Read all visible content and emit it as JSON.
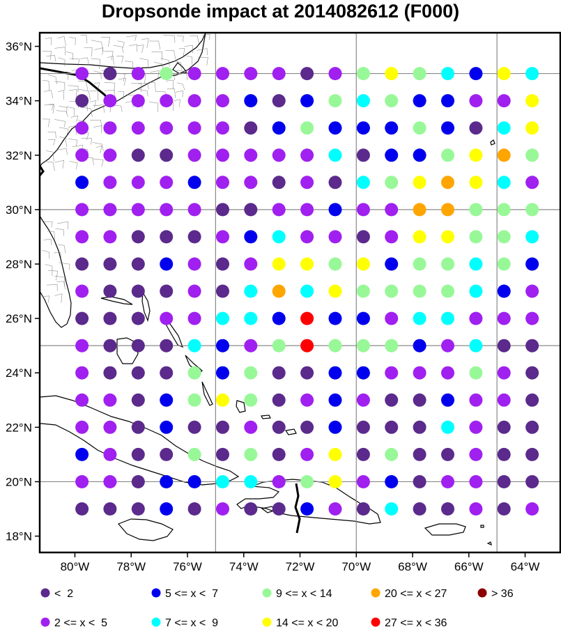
{
  "title": "Dropsonde impact at 2014082612 (F000)",
  "lon_range": [
    -81.25,
    -62.75
  ],
  "lat_range": [
    17.4,
    36.5
  ],
  "grid_lons": [
    -75,
    -70,
    -65
  ],
  "grid_lats": [
    20,
    25,
    30,
    35
  ],
  "lon_ticks": [
    {
      "lon": -80,
      "label": "80°W"
    },
    {
      "lon": -78,
      "label": "78°W"
    },
    {
      "lon": -76,
      "label": "76°W"
    },
    {
      "lon": -74,
      "label": "74°W"
    },
    {
      "lon": -72,
      "label": "72°W"
    },
    {
      "lon": -70,
      "label": "70°W"
    },
    {
      "lon": -68,
      "label": "68°W"
    },
    {
      "lon": -66,
      "label": "66°W"
    },
    {
      "lon": -64,
      "label": "64°W"
    }
  ],
  "lat_ticks": [
    {
      "lat": 18,
      "label": "18°N"
    },
    {
      "lat": 20,
      "label": "20°N"
    },
    {
      "lat": 22,
      "label": "22°N"
    },
    {
      "lat": 24,
      "label": "24°N"
    },
    {
      "lat": 26,
      "label": "26°N"
    },
    {
      "lat": 28,
      "label": "28°N"
    },
    {
      "lat": 30,
      "label": "30°N"
    },
    {
      "lat": 32,
      "label": "32°N"
    },
    {
      "lat": 34,
      "label": "34°N"
    },
    {
      "lat": 36,
      "label": "36°N"
    }
  ],
  "categories": [
    {
      "label": "<  2",
      "color": "#5b2a8c"
    },
    {
      "label": "2 <= x <  5",
      "color": "#a020f0"
    },
    {
      "label": "5 <= x <  7",
      "color": "#0000ee"
    },
    {
      "label": "7 <= x <  9",
      "color": "#00ffff"
    },
    {
      "label": "9 <= x < 14",
      "color": "#98f898"
    },
    {
      "label": "14 <= x < 20",
      "color": "#ffff00"
    },
    {
      "label": "20 <= x < 27",
      "color": "#ffa500"
    },
    {
      "label": "27 <= x < 36",
      "color": "#ff0000"
    },
    {
      "label": "> 36",
      "color": "#8b0000"
    }
  ],
  "points": {
    "lons": [
      -79.75,
      -78.75,
      -77.75,
      -76.75,
      -75.75,
      -74.75,
      -73.75,
      -72.75,
      -71.75,
      -70.75,
      -69.75,
      -68.75,
      -67.75,
      -66.75,
      -65.75,
      -64.75,
      -63.75
    ],
    "lats": [
      35,
      34,
      33,
      32,
      31,
      30,
      29,
      28,
      27,
      26,
      25,
      24,
      23,
      22,
      21,
      20,
      19
    ],
    "rows": [
      [
        1,
        0,
        1,
        4,
        1,
        1,
        1,
        1,
        0,
        1,
        4,
        5,
        4,
        3,
        2,
        5,
        3
      ],
      [
        0,
        1,
        1,
        1,
        1,
        1,
        2,
        0,
        2,
        4,
        3,
        4,
        2,
        2,
        1,
        1,
        5
      ],
      [
        1,
        1,
        1,
        1,
        1,
        1,
        0,
        2,
        4,
        2,
        2,
        2,
        4,
        2,
        0,
        3,
        5
      ],
      [
        1,
        1,
        0,
        0,
        1,
        1,
        1,
        1,
        1,
        3,
        0,
        2,
        2,
        4,
        5,
        6,
        4
      ],
      [
        2,
        1,
        1,
        1,
        2,
        1,
        1,
        0,
        1,
        0,
        3,
        4,
        5,
        6,
        5,
        3,
        1
      ],
      [
        1,
        1,
        1,
        1,
        1,
        0,
        0,
        1,
        1,
        2,
        1,
        1,
        6,
        6,
        4,
        4,
        4
      ],
      [
        1,
        1,
        0,
        0,
        0,
        1,
        2,
        3,
        1,
        1,
        0,
        1,
        5,
        5,
        4,
        4,
        3
      ],
      [
        0,
        0,
        0,
        2,
        1,
        0,
        1,
        5,
        5,
        4,
        5,
        2,
        4,
        4,
        3,
        4,
        2
      ],
      [
        1,
        0,
        0,
        0,
        1,
        0,
        3,
        6,
        3,
        5,
        4,
        4,
        4,
        4,
        3,
        2,
        1
      ],
      [
        0,
        0,
        0,
        1,
        1,
        3,
        3,
        2,
        7,
        2,
        2,
        1,
        3,
        3,
        1,
        1,
        1
      ],
      [
        1,
        0,
        0,
        0,
        3,
        2,
        1,
        4,
        7,
        4,
        4,
        4,
        2,
        1,
        3,
        0,
        0
      ],
      [
        1,
        0,
        0,
        0,
        4,
        2,
        4,
        0,
        0,
        2,
        2,
        1,
        1,
        1,
        4,
        1,
        0
      ],
      [
        1,
        1,
        0,
        2,
        4,
        5,
        4,
        0,
        1,
        2,
        1,
        0,
        0,
        2,
        1,
        1,
        0
      ],
      [
        1,
        1,
        0,
        2,
        0,
        0,
        1,
        0,
        0,
        2,
        0,
        0,
        0,
        3,
        1,
        0,
        0
      ],
      [
        2,
        1,
        0,
        0,
        4,
        0,
        4,
        0,
        1,
        5,
        0,
        4,
        0,
        0,
        1,
        0,
        0
      ],
      [
        1,
        1,
        0,
        2,
        2,
        3,
        3,
        1,
        4,
        5,
        1,
        2,
        0,
        1,
        1,
        0,
        0
      ],
      [
        0,
        0,
        0,
        2,
        0,
        1,
        0,
        0,
        2,
        1,
        0,
        3,
        0,
        0,
        1,
        0,
        1
      ]
    ]
  }
}
